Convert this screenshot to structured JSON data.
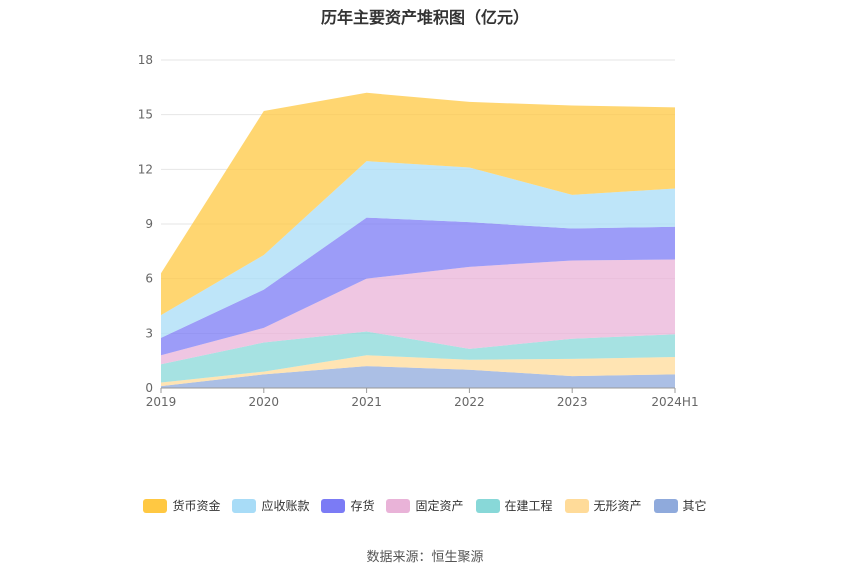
{
  "title": "历年主要资产堆积图（亿元）",
  "source_text": "数据来源：恒生聚源",
  "chart_data": {
    "type": "area",
    "stacked": true,
    "title": "历年主要资产堆积图（亿元）",
    "x": [
      "2019",
      "2020",
      "2021",
      "2022",
      "2023",
      "2024H1"
    ],
    "ylim": [
      0,
      18
    ],
    "yticks": [
      0,
      3,
      6,
      9,
      12,
      15,
      18
    ],
    "grid": true,
    "legend_position": "bottom",
    "series": [
      {
        "name": "其它",
        "color": "#8faadc",
        "values": [
          0.1,
          0.75,
          1.2,
          1.0,
          0.65,
          0.75
        ]
      },
      {
        "name": "无形资产",
        "color": "#ffdb99",
        "values": [
          0.2,
          0.15,
          0.6,
          0.55,
          0.95,
          0.95
        ]
      },
      {
        "name": "在建工程",
        "color": "#88d8d8",
        "values": [
          1.0,
          1.6,
          1.3,
          0.6,
          1.1,
          1.25
        ]
      },
      {
        "name": "固定资产",
        "color": "#e9b3d8",
        "values": [
          0.5,
          0.8,
          2.9,
          4.5,
          4.3,
          4.1
        ]
      },
      {
        "name": "存货",
        "color": "#7b7bf5",
        "values": [
          0.95,
          2.1,
          3.35,
          2.45,
          1.75,
          1.8
        ]
      },
      {
        "name": "应收账款",
        "color": "#a8dcf7",
        "values": [
          1.25,
          1.9,
          3.1,
          3.0,
          1.85,
          2.1
        ]
      },
      {
        "name": "货币资金",
        "color": "#ffc842",
        "values": [
          2.3,
          7.9,
          3.75,
          3.6,
          4.9,
          4.45
        ]
      }
    ],
    "legend_order": [
      "货币资金",
      "应收账款",
      "存货",
      "固定资产",
      "在建工程",
      "无形资产",
      "其它"
    ]
  }
}
